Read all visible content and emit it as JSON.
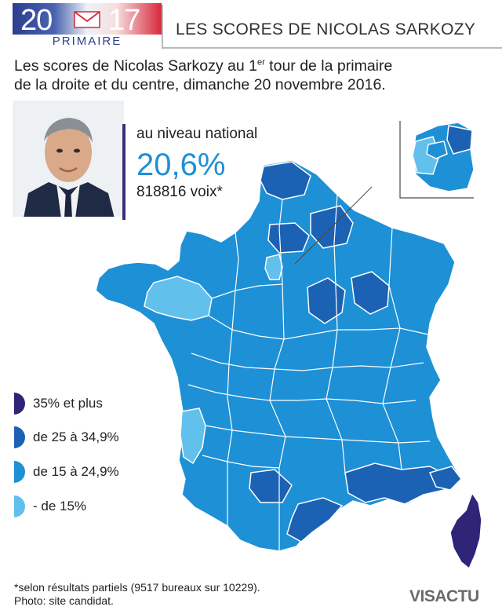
{
  "header": {
    "logo_year_left": "20",
    "logo_year_right": "17",
    "logo_sub": "PRIMAIRE",
    "title": "LES SCORES DE NICOLAS SARKOZY"
  },
  "intro": {
    "line1_before_sup": "Les scores de Nicolas Sarkozy au 1",
    "sup": "er",
    "line1_after_sup": " tour de la primaire",
    "line2": "de la droite et du centre, dimanche 20 novembre 2016."
  },
  "national": {
    "label": "au niveau national",
    "value": "20,6%",
    "votes": "818816 voix*"
  },
  "legend": [
    {
      "label": "35% et plus",
      "color": "#2e2478"
    },
    {
      "label": "de 25 à 34,9%",
      "color": "#1c62b4"
    },
    {
      "label": "de 15 à 24,9%",
      "color": "#1e90d6"
    },
    {
      "label": "- de 15%",
      "color": "#62c0ec"
    }
  ],
  "colors": {
    "tier1": "#2e2478",
    "tier2": "#1c62b4",
    "tier3": "#1e90d6",
    "tier4": "#62c0ec",
    "border": "#ffffff",
    "accent": "#3a2e7c"
  },
  "footnote": {
    "line1": "*selon résultats partiels (9517 bureaux sur 10229).",
    "line2": "Photo: site candidat."
  },
  "brand": {
    "name": "VISACTU"
  },
  "icons": {
    "envelope": "envelope-icon",
    "brand_mark": "visactu-logo-icon"
  }
}
